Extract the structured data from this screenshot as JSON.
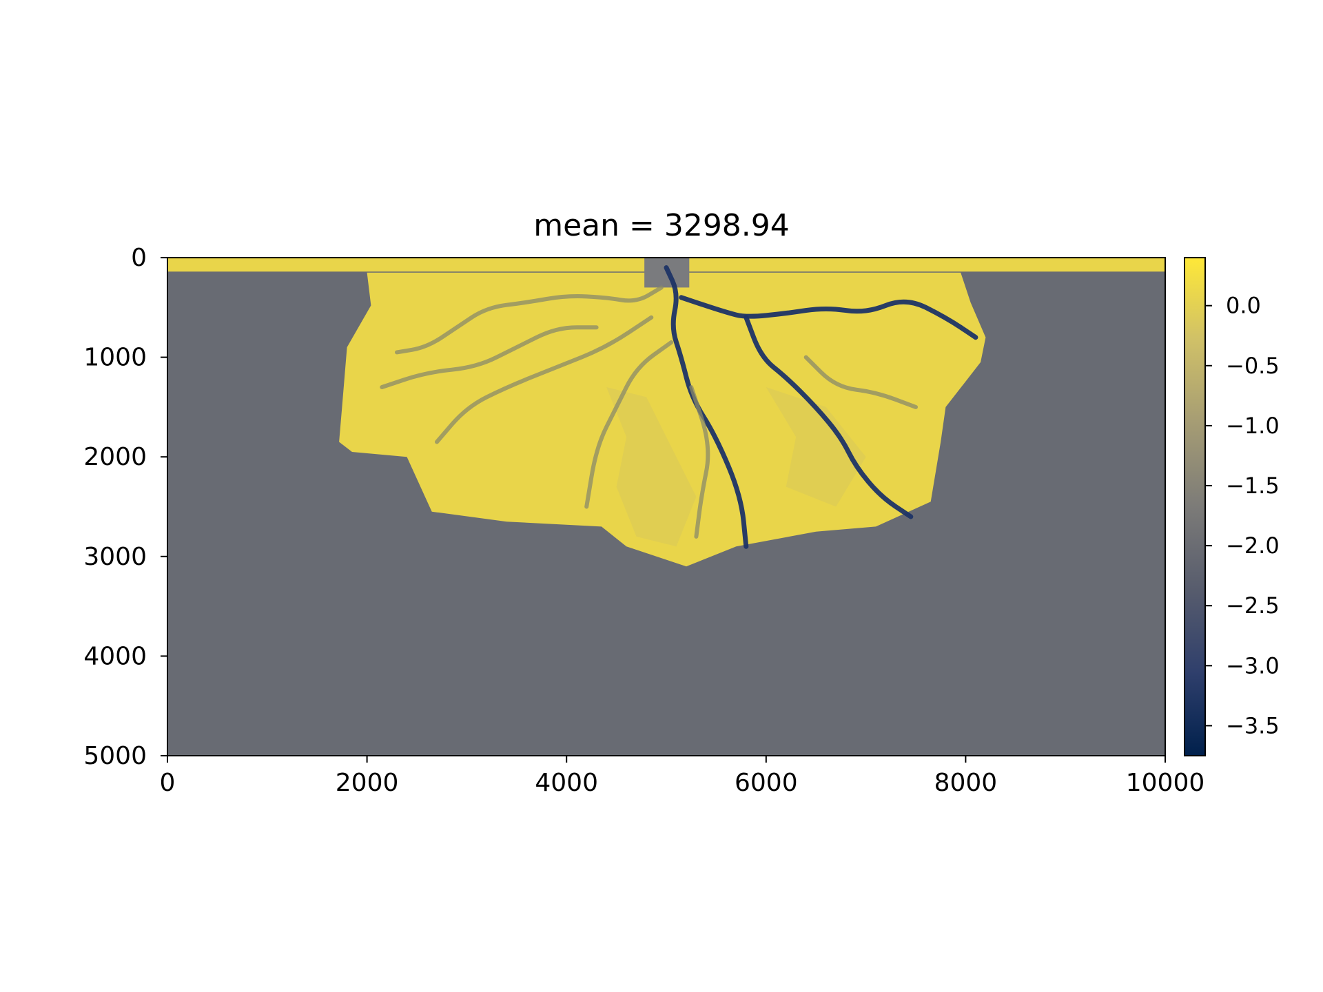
{
  "chart_data": {
    "type": "heatmap",
    "title": "mean = 3298.94",
    "xlabel": "",
    "ylabel": "",
    "xlim": [
      0,
      10000
    ],
    "ylim": [
      5000,
      0
    ],
    "x_ticks": [
      0,
      2000,
      4000,
      6000,
      8000,
      10000
    ],
    "x_tick_labels": [
      "0",
      "2000",
      "4000",
      "6000",
      "8000",
      "10000"
    ],
    "y_ticks": [
      0,
      1000,
      2000,
      3000,
      4000,
      5000
    ],
    "y_tick_labels": [
      "0",
      "1000",
      "2000",
      "3000",
      "4000",
      "5000"
    ],
    "grid": false,
    "colormap": "cividis",
    "colorbar": {
      "range": [
        -3.75,
        0.4
      ],
      "ticks": [
        0.0,
        -0.5,
        -1.0,
        -1.5,
        -2.0,
        -2.5,
        -3.0,
        -3.5
      ],
      "tick_labels": [
        "0.0",
        "−0.5",
        "−1.0",
        "−1.5",
        "−2.0",
        "−2.5",
        "−3.0",
        "−3.5"
      ],
      "colors": [
        "#00204c",
        "#2f3f6c",
        "#575c6d",
        "#7c7b78",
        "#a59c74",
        "#cfc068",
        "#fee838"
      ]
    },
    "field": {
      "basin_value": -2.0,
      "land_value": 0.15,
      "channel_value": -3.4,
      "basin_color": "#686b73",
      "land_color": "#e9d54a",
      "channel_color": "#1e3466",
      "inlet_color": "#7a7b7e",
      "top_strip": {
        "y": [
          0,
          140
        ],
        "x": [
          0,
          10000
        ]
      },
      "inlet": {
        "x": [
          4780,
          5230
        ],
        "y": [
          0,
          300
        ]
      },
      "deposit_outline": [
        [
          2000,
          150
        ],
        [
          2040,
          480
        ],
        [
          1800,
          900
        ],
        [
          1750,
          1500
        ],
        [
          1720,
          1850
        ],
        [
          1850,
          1950
        ],
        [
          2400,
          2000
        ],
        [
          2650,
          2550
        ],
        [
          3400,
          2650
        ],
        [
          4350,
          2700
        ],
        [
          4600,
          2900
        ],
        [
          5200,
          3100
        ],
        [
          5700,
          2900
        ],
        [
          6500,
          2750
        ],
        [
          7100,
          2700
        ],
        [
          7650,
          2450
        ],
        [
          7750,
          1850
        ],
        [
          7800,
          1500
        ],
        [
          8150,
          1050
        ],
        [
          8200,
          800
        ],
        [
          8050,
          450
        ],
        [
          7950,
          150
        ]
      ],
      "lobes": [
        [
          [
            4400,
            1300
          ],
          [
            4600,
            1800
          ],
          [
            4500,
            2300
          ],
          [
            4700,
            2800
          ],
          [
            5100,
            2900
          ],
          [
            5300,
            2400
          ],
          [
            5050,
            1900
          ],
          [
            4800,
            1400
          ]
        ],
        [
          [
            6000,
            1300
          ],
          [
            6300,
            1800
          ],
          [
            6200,
            2300
          ],
          [
            6700,
            2500
          ],
          [
            7000,
            2000
          ],
          [
            6600,
            1500
          ]
        ]
      ],
      "channels": [
        [
          [
            5000,
            100
          ],
          [
            5120,
            360
          ],
          [
            5050,
            700
          ],
          [
            5150,
            1000
          ],
          [
            5250,
            1400
          ],
          [
            5500,
            1800
          ],
          [
            5750,
            2400
          ],
          [
            5800,
            2900
          ]
        ],
        [
          [
            5150,
            400
          ],
          [
            5600,
            550
          ],
          [
            5800,
            600
          ],
          [
            6200,
            560
          ],
          [
            6600,
            500
          ],
          [
            7000,
            560
          ],
          [
            7400,
            400
          ],
          [
            7800,
            600
          ],
          [
            8100,
            800
          ]
        ],
        [
          [
            5800,
            600
          ],
          [
            5950,
            1000
          ],
          [
            6200,
            1200
          ],
          [
            6500,
            1500
          ],
          [
            6750,
            1800
          ],
          [
            6900,
            2100
          ],
          [
            7150,
            2400
          ],
          [
            7450,
            2600
          ]
        ],
        [
          [
            4950,
            300
          ],
          [
            4700,
            450
          ],
          [
            4400,
            400
          ],
          [
            4000,
            380
          ],
          [
            3600,
            450
          ],
          [
            3200,
            500
          ],
          [
            2900,
            700
          ],
          [
            2600,
            900
          ],
          [
            2300,
            950
          ]
        ],
        [
          [
            4850,
            600
          ],
          [
            4400,
            900
          ],
          [
            3900,
            1100
          ],
          [
            3400,
            1300
          ],
          [
            3000,
            1500
          ],
          [
            2700,
            1850
          ]
        ],
        [
          [
            5050,
            850
          ],
          [
            4700,
            1100
          ],
          [
            4500,
            1500
          ],
          [
            4300,
            1900
          ],
          [
            4200,
            2500
          ]
        ],
        [
          [
            5250,
            1300
          ],
          [
            5450,
            1900
          ],
          [
            5350,
            2400
          ],
          [
            5300,
            2800
          ]
        ],
        [
          [
            4300,
            700
          ],
          [
            3900,
            700
          ],
          [
            3500,
            900
          ],
          [
            3100,
            1100
          ],
          [
            2600,
            1150
          ],
          [
            2150,
            1300
          ]
        ],
        [
          [
            6400,
            1000
          ],
          [
            6700,
            1300
          ],
          [
            7100,
            1350
          ],
          [
            7500,
            1500
          ]
        ]
      ]
    }
  }
}
